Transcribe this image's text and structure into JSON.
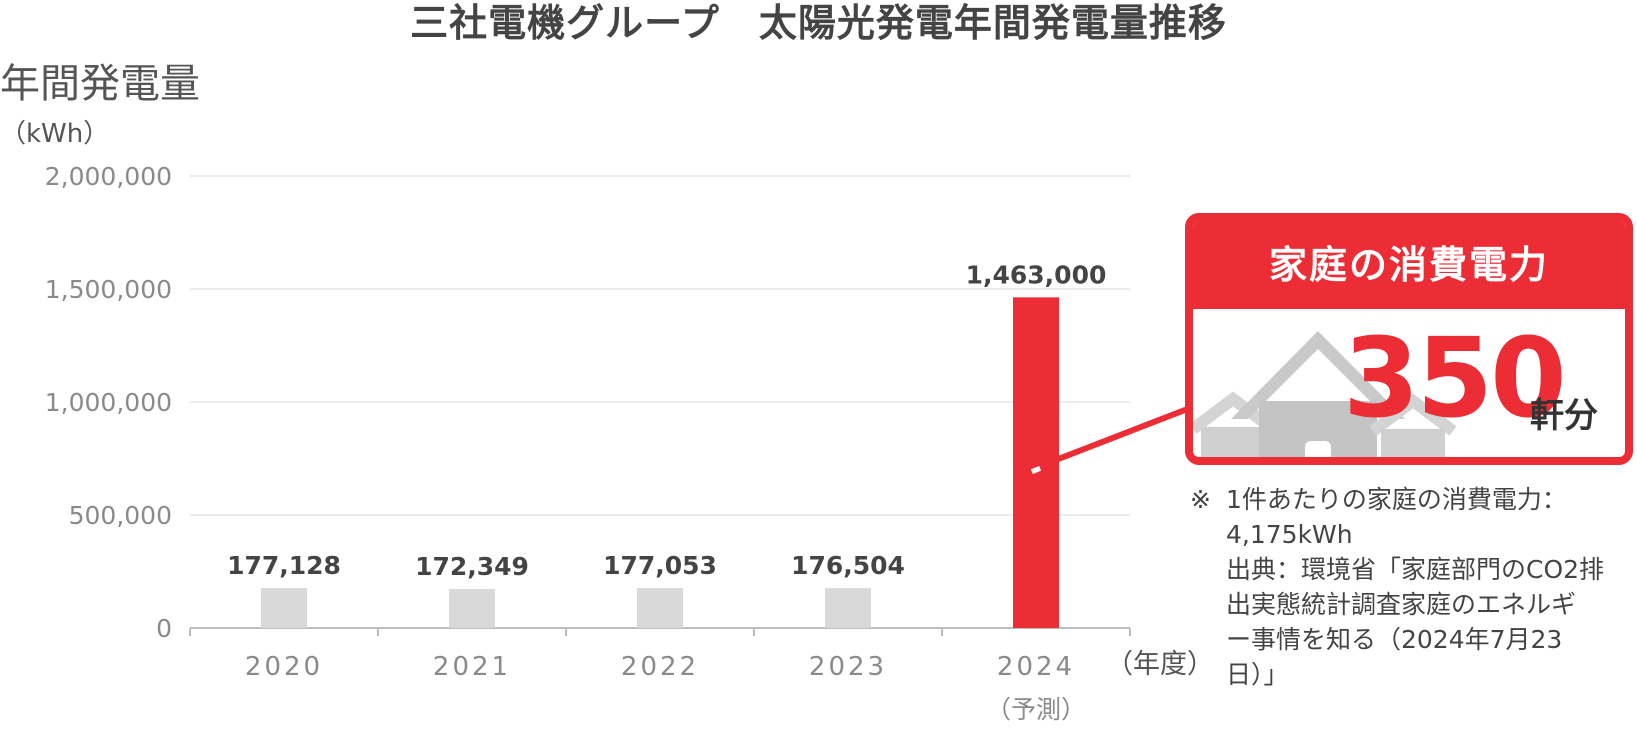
{
  "chart_data": {
    "type": "bar",
    "title": "三社電機グループ　太陽光発電年間発電量推移",
    "ylabel": "年間発電量",
    "yunit": "（kWh）",
    "xunit": "（年度）",
    "categories": [
      "2020",
      "2021",
      "2022",
      "2023",
      "2024"
    ],
    "category_sublabels": [
      "",
      "",
      "",
      "",
      "（予測）"
    ],
    "values": [
      177128,
      172349,
      177053,
      176504,
      1463000
    ],
    "value_labels": [
      "177,128",
      "172,349",
      "177,053",
      "176,504",
      "1,463,000"
    ],
    "ylim": [
      0,
      2000000
    ],
    "yticks": [
      0,
      500000,
      1000000,
      1500000,
      2000000
    ],
    "ytick_labels": [
      "0",
      "500,000",
      "1,000,000",
      "1,500,000",
      "2,000,000"
    ],
    "grid": true,
    "bar_colors": [
      "#d9d9d9",
      "#d9d9d9",
      "#d9d9d9",
      "#d9d9d9",
      "#ec2d36"
    ]
  },
  "callout": {
    "title": "家庭の消費電力",
    "value": "350",
    "unit": "軒分",
    "accent_color": "#ec2d36",
    "icon": "house-icon"
  },
  "note": {
    "mark": "※",
    "lines": [
      "1件あたりの家庭の消費電力：",
      "4,175kWh",
      "出典：環境省「家庭部門のCO2排",
      "出実態統計調査家庭のエネルギ",
      "ー事情を知る（2024年7月23",
      "日）」"
    ]
  }
}
